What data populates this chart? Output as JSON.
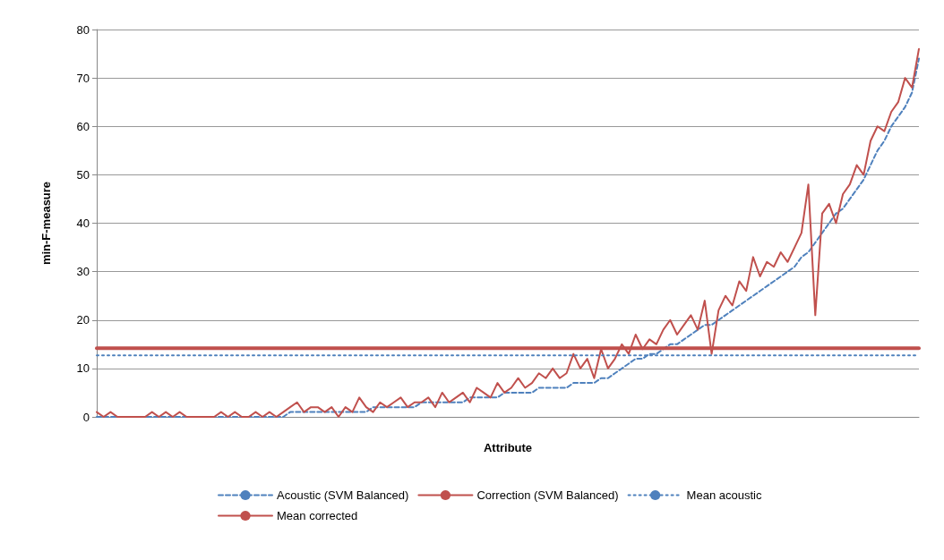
{
  "chart_data": {
    "type": "line",
    "xlabel": "Attribute",
    "ylabel": "min-F-measure",
    "categories": [
      null,
      null,
      null,
      null,
      null,
      null,
      null,
      null,
      null,
      null,
      null,
      null,
      null,
      null,
      null,
      null,
      null,
      null,
      null,
      null,
      null,
      null,
      null,
      null,
      null,
      null,
      null,
      null,
      null,
      null,
      null,
      null,
      null,
      null,
      null,
      null,
      null,
      null,
      null,
      null,
      null,
      null,
      null,
      null,
      null,
      null,
      null,
      null,
      null,
      null,
      null,
      null,
      null,
      null,
      null,
      null,
      null,
      null,
      null,
      null,
      null,
      null,
      null,
      null,
      null,
      null,
      null,
      null,
      null,
      null,
      null,
      null,
      null,
      null,
      null,
      null,
      null,
      null,
      null,
      null,
      null,
      null,
      null,
      null,
      null,
      null,
      null,
      null,
      null,
      null,
      null,
      null,
      null,
      null,
      null,
      null,
      null,
      null,
      null,
      null,
      null,
      null,
      null,
      null,
      null,
      null,
      null,
      null,
      null,
      null,
      null,
      null,
      null,
      null,
      null,
      null,
      null,
      null,
      null,
      null
    ],
    "series": [
      {
        "name": "Acoustic (SVM Balanced)",
        "color": "#4f81bd",
        "line_style": "dashed",
        "values": [
          0,
          0,
          0,
          0,
          0,
          0,
          0,
          0,
          0,
          0,
          0,
          0,
          0,
          0,
          0,
          0,
          0,
          0,
          0,
          0,
          0,
          0,
          0,
          0,
          0,
          0,
          0,
          0,
          1,
          1,
          1,
          1,
          1,
          1,
          1,
          1,
          1,
          1,
          1,
          1,
          2,
          2,
          2,
          2,
          2,
          2,
          2,
          3,
          3,
          3,
          3,
          3,
          3,
          3,
          4,
          4,
          4,
          4,
          4,
          5,
          5,
          5,
          5,
          5,
          6,
          6,
          6,
          6,
          6,
          7,
          7,
          7,
          7,
          8,
          8,
          9,
          10,
          11,
          12,
          12,
          13,
          13,
          14,
          15,
          15,
          16,
          17,
          18,
          19,
          19,
          20,
          21,
          22,
          23,
          24,
          25,
          26,
          27,
          28,
          29,
          30,
          31,
          33,
          34,
          36,
          38,
          40,
          42,
          43,
          45,
          47,
          49,
          52,
          55,
          57,
          60,
          62,
          64,
          67,
          74
        ]
      },
      {
        "name": "Correction (SVM Balanced)",
        "color": "#c0504d",
        "line_style": "solid",
        "values": [
          1,
          0,
          1,
          0,
          0,
          0,
          0,
          0,
          1,
          0,
          1,
          0,
          1,
          0,
          0,
          0,
          0,
          0,
          1,
          0,
          1,
          0,
          0,
          1,
          0,
          1,
          0,
          1,
          2,
          3,
          1,
          2,
          2,
          1,
          2,
          0,
          2,
          1,
          4,
          2,
          1,
          3,
          2,
          3,
          4,
          2,
          3,
          3,
          4,
          2,
          5,
          3,
          4,
          5,
          3,
          6,
          5,
          4,
          7,
          5,
          6,
          8,
          6,
          7,
          9,
          8,
          10,
          8,
          9,
          13,
          10,
          12,
          8,
          14,
          10,
          12,
          15,
          13,
          17,
          14,
          16,
          15,
          18,
          20,
          17,
          19,
          21,
          18,
          24,
          13,
          22,
          25,
          23,
          28,
          26,
          33,
          29,
          32,
          31,
          34,
          32,
          35,
          38,
          48,
          21,
          42,
          44,
          40,
          46,
          48,
          52,
          50,
          57,
          60,
          59,
          63,
          65,
          70,
          68,
          76
        ]
      },
      {
        "name": "Mean acoustic",
        "color": "#4f81bd",
        "line_style": "dotted",
        "values": [
          12.7,
          12.7,
          12.7,
          12.7,
          12.7,
          12.7,
          12.7,
          12.7,
          12.7,
          12.7,
          12.7,
          12.7,
          12.7,
          12.7,
          12.7,
          12.7,
          12.7,
          12.7,
          12.7,
          12.7,
          12.7,
          12.7,
          12.7,
          12.7,
          12.7,
          12.7,
          12.7,
          12.7,
          12.7,
          12.7,
          12.7,
          12.7,
          12.7,
          12.7,
          12.7,
          12.7,
          12.7,
          12.7,
          12.7,
          12.7,
          12.7,
          12.7,
          12.7,
          12.7,
          12.7,
          12.7,
          12.7,
          12.7,
          12.7,
          12.7,
          12.7,
          12.7,
          12.7,
          12.7,
          12.7,
          12.7,
          12.7,
          12.7,
          12.7,
          12.7,
          12.7,
          12.7,
          12.7,
          12.7,
          12.7,
          12.7,
          12.7,
          12.7,
          12.7,
          12.7,
          12.7,
          12.7,
          12.7,
          12.7,
          12.7,
          12.7,
          12.7,
          12.7,
          12.7,
          12.7,
          12.7,
          12.7,
          12.7,
          12.7,
          12.7,
          12.7,
          12.7,
          12.7,
          12.7,
          12.7,
          12.7,
          12.7,
          12.7,
          12.7,
          12.7,
          12.7,
          12.7,
          12.7,
          12.7,
          12.7,
          12.7,
          12.7,
          12.7,
          12.7,
          12.7,
          12.7,
          12.7,
          12.7,
          12.7,
          12.7,
          12.7,
          12.7,
          12.7,
          12.7,
          12.7,
          12.7,
          12.7,
          12.7,
          12.7,
          12.7
        ]
      },
      {
        "name": "Mean corrected",
        "color": "#c0504d",
        "line_style": "solid",
        "values": [
          14.2,
          14.2,
          14.2,
          14.2,
          14.2,
          14.2,
          14.2,
          14.2,
          14.2,
          14.2,
          14.2,
          14.2,
          14.2,
          14.2,
          14.2,
          14.2,
          14.2,
          14.2,
          14.2,
          14.2,
          14.2,
          14.2,
          14.2,
          14.2,
          14.2,
          14.2,
          14.2,
          14.2,
          14.2,
          14.2,
          14.2,
          14.2,
          14.2,
          14.2,
          14.2,
          14.2,
          14.2,
          14.2,
          14.2,
          14.2,
          14.2,
          14.2,
          14.2,
          14.2,
          14.2,
          14.2,
          14.2,
          14.2,
          14.2,
          14.2,
          14.2,
          14.2,
          14.2,
          14.2,
          14.2,
          14.2,
          14.2,
          14.2,
          14.2,
          14.2,
          14.2,
          14.2,
          14.2,
          14.2,
          14.2,
          14.2,
          14.2,
          14.2,
          14.2,
          14.2,
          14.2,
          14.2,
          14.2,
          14.2,
          14.2,
          14.2,
          14.2,
          14.2,
          14.2,
          14.2,
          14.2,
          14.2,
          14.2,
          14.2,
          14.2,
          14.2,
          14.2,
          14.2,
          14.2,
          14.2,
          14.2,
          14.2,
          14.2,
          14.2,
          14.2,
          14.2,
          14.2,
          14.2,
          14.2,
          14.2,
          14.2,
          14.2,
          14.2,
          14.2,
          14.2,
          14.2,
          14.2,
          14.2,
          14.2,
          14.2,
          14.2,
          14.2,
          14.2,
          14.2,
          14.2,
          14.2,
          14.2,
          14.2,
          14.2,
          14.2
        ]
      }
    ],
    "ylim": [
      0,
      80
    ],
    "yticks": [
      0,
      10,
      20,
      30,
      40,
      50,
      60,
      70,
      80
    ],
    "grid": "y",
    "legend": "bottom",
    "marker": "none"
  }
}
